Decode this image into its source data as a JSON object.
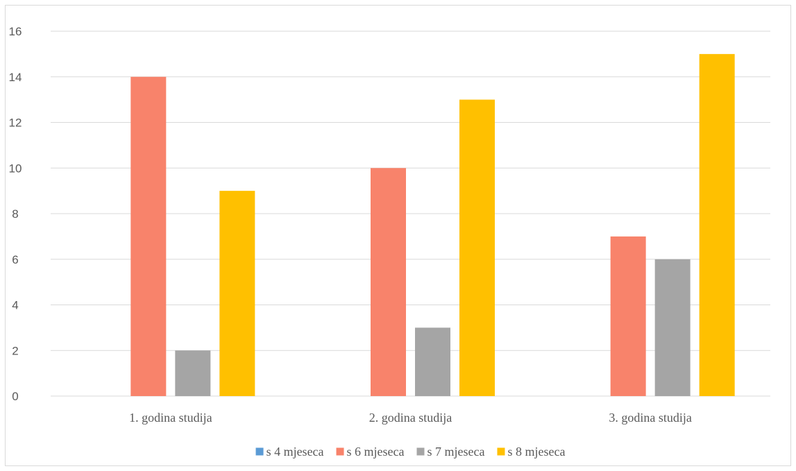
{
  "chart_data": {
    "type": "bar",
    "title": "",
    "xlabel": "",
    "ylabel": "",
    "categories": [
      "1. godina studija",
      "2. godina studija",
      "3. godina studija"
    ],
    "series": [
      {
        "name": "s 4 mjeseca",
        "color": "#5b9bd5",
        "values": [
          0,
          0,
          0
        ]
      },
      {
        "name": "s 6 mjeseca",
        "color": "#f8836b",
        "values": [
          14,
          10,
          7
        ]
      },
      {
        "name": "s 7 mjeseca",
        "color": "#a5a5a5",
        "values": [
          2,
          3,
          6
        ]
      },
      {
        "name": "s 8 mjeseca",
        "color": "#ffc000",
        "values": [
          9,
          13,
          15
        ]
      }
    ],
    "ylim": [
      0,
      16
    ],
    "yticks": [
      0,
      2,
      4,
      6,
      8,
      10,
      12,
      14,
      16
    ],
    "grid": true,
    "legend": "bottom"
  }
}
